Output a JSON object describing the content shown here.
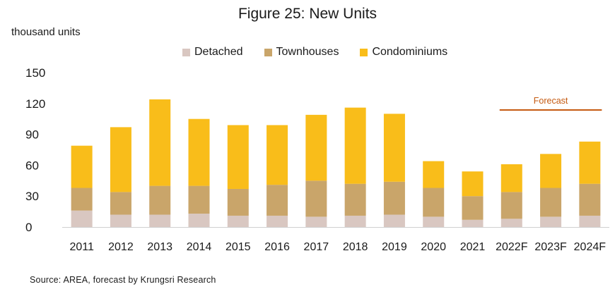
{
  "chart_data": {
    "type": "bar",
    "stacked": true,
    "title": "Figure 25: New Units",
    "ylabel": "thousand units",
    "ylim": [
      0,
      150
    ],
    "yticks": [
      0,
      30,
      60,
      90,
      120,
      150
    ],
    "grid": false,
    "legend_position": "top",
    "categories": [
      "2011",
      "2012",
      "2013",
      "2014",
      "2015",
      "2016",
      "2017",
      "2018",
      "2019",
      "2020",
      "2021",
      "2022F",
      "2023F",
      "2024F"
    ],
    "series": [
      {
        "name": "Detached",
        "color": "#d9c7c1",
        "values": [
          16,
          12,
          12,
          13,
          11,
          11,
          10,
          11,
          12,
          10,
          7,
          8,
          10,
          11
        ]
      },
      {
        "name": "Townhouses",
        "color": "#c9a56a",
        "values": [
          22,
          22,
          28,
          27,
          26,
          30,
          35,
          31,
          32,
          28,
          23,
          26,
          28,
          31
        ]
      },
      {
        "name": "Condominiums",
        "color": "#f9bd1a",
        "values": [
          41,
          63,
          84,
          65,
          62,
          58,
          64,
          74,
          66,
          26,
          24,
          27,
          33,
          41
        ]
      }
    ],
    "annotation": {
      "text": "Forecast",
      "color": "#c55a11"
    }
  },
  "source": "Source: AREA, forecast by Krungsri Research"
}
